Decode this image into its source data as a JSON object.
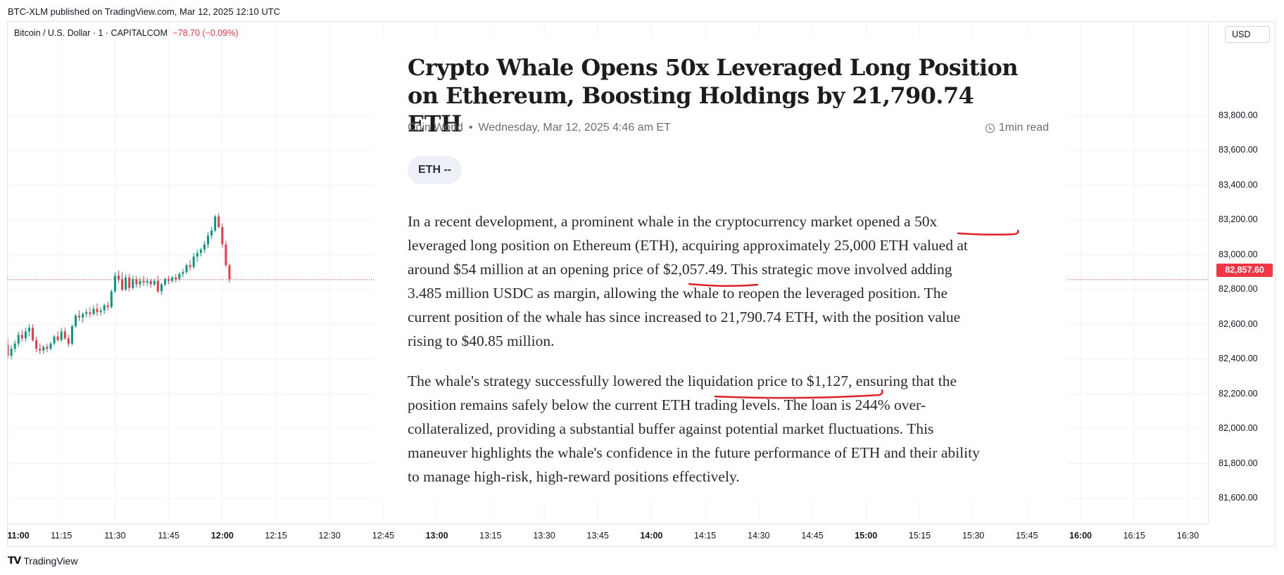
{
  "publish_line": "BTC-XLM published on TradingView.com, Mar 12, 2025 12:10 UTC",
  "legend": {
    "symbol": "Bitcoin / U.S. Dollar · 1 · CAPITALCOM",
    "change": "−78.70 (−0.09%)"
  },
  "currency": "USD",
  "last_price": "82,857.60",
  "colors": {
    "up": "#089981",
    "down": "#f23645",
    "grid": "#f0f3fa"
  },
  "price_scale": [
    "83,800.00",
    "83,600.00",
    "83,400.00",
    "83,200.00",
    "83,000.00",
    "82,800.00",
    "82,600.00",
    "82,400.00",
    "82,200.00",
    "82,000.00",
    "81,800.00",
    "81,600.00"
  ],
  "time_axis": [
    {
      "label": "11:00",
      "major": true
    },
    {
      "label": "11:15",
      "major": false
    },
    {
      "label": "11:30",
      "major": false
    },
    {
      "label": "11:45",
      "major": false
    },
    {
      "label": "12:00",
      "major": true
    },
    {
      "label": "12:15",
      "major": false
    },
    {
      "label": "12:30",
      "major": false
    },
    {
      "label": "12:45",
      "major": false
    },
    {
      "label": "13:00",
      "major": true
    },
    {
      "label": "13:15",
      "major": false
    },
    {
      "label": "13:30",
      "major": false
    },
    {
      "label": "13:45",
      "major": false
    },
    {
      "label": "14:00",
      "major": true
    },
    {
      "label": "14:15",
      "major": false
    },
    {
      "label": "14:30",
      "major": false
    },
    {
      "label": "14:45",
      "major": false
    },
    {
      "label": "15:00",
      "major": true
    },
    {
      "label": "15:15",
      "major": false
    },
    {
      "label": "15:30",
      "major": false
    },
    {
      "label": "15:45",
      "major": false
    },
    {
      "label": "16:00",
      "major": true
    },
    {
      "label": "16:15",
      "major": false
    },
    {
      "label": "16:30",
      "major": false
    }
  ],
  "brand": "TradingView",
  "article": {
    "title": "Crypto Whale Opens 50x Leveraged Long Position on Ethereum, Boosting Holdings by 21,790.74 ETH",
    "source": "Coin World",
    "date": "Wednesday, Mar 12, 2025 4:46 am ET",
    "read_time": "1min read",
    "ticker": "ETH --",
    "paragraph1": [
      "In a recent development, a prominent whale in the cryptocurrency market opened a 50x",
      "leveraged long position on Ethereum (ETH), acquiring approximately 25,000 ETH valued at",
      "around $54 million at an opening price of $2,057.49. This strategic move involved adding",
      "3.485 million USDC as margin, allowing the whale to reopen the leveraged position. The",
      "current position of the whale has since increased to 21,790.74 ETH, with the position value",
      "rising to $40.85 million."
    ],
    "paragraph2": [
      "The whale's strategy successfully lowered the liquidation price to $1,127, ensuring that the",
      "position remains safely below the current ETH trading levels. The loan is 244% over-",
      "collateralized, providing a substantial buffer against potential market fluctuations. This",
      "maneuver highlights the whale's confidence in the future performance of ETH and their ability",
      "to manage high-risk, high-reward positions effectively."
    ]
  },
  "candles": [
    {
      "t": "11:00",
      "o": 82480,
      "h": 82520,
      "l": 82400,
      "c": 82420
    },
    {
      "t": "11:01",
      "o": 82420,
      "h": 82480,
      "l": 82400,
      "c": 82460
    },
    {
      "t": "11:02",
      "o": 82460,
      "h": 82510,
      "l": 82440,
      "c": 82490
    },
    {
      "t": "11:03",
      "o": 82490,
      "h": 82560,
      "l": 82470,
      "c": 82540
    },
    {
      "t": "11:04",
      "o": 82540,
      "h": 82570,
      "l": 82500,
      "c": 82520
    },
    {
      "t": "11:05",
      "o": 82520,
      "h": 82580,
      "l": 82500,
      "c": 82560
    },
    {
      "t": "11:06",
      "o": 82560,
      "h": 82600,
      "l": 82530,
      "c": 82580
    },
    {
      "t": "11:07",
      "o": 82580,
      "h": 82600,
      "l": 82500,
      "c": 82510
    },
    {
      "t": "11:08",
      "o": 82510,
      "h": 82530,
      "l": 82440,
      "c": 82460
    },
    {
      "t": "11:09",
      "o": 82460,
      "h": 82490,
      "l": 82430,
      "c": 82450
    },
    {
      "t": "11:10",
      "o": 82450,
      "h": 82480,
      "l": 82430,
      "c": 82470
    },
    {
      "t": "11:11",
      "o": 82470,
      "h": 82490,
      "l": 82440,
      "c": 82460
    },
    {
      "t": "11:12",
      "o": 82460,
      "h": 82500,
      "l": 82450,
      "c": 82490
    },
    {
      "t": "11:13",
      "o": 82490,
      "h": 82540,
      "l": 82480,
      "c": 82530
    },
    {
      "t": "11:14",
      "o": 82530,
      "h": 82560,
      "l": 82500,
      "c": 82510
    },
    {
      "t": "11:15",
      "o": 82510,
      "h": 82580,
      "l": 82500,
      "c": 82560
    },
    {
      "t": "11:16",
      "o": 82560,
      "h": 82580,
      "l": 82510,
      "c": 82520
    },
    {
      "t": "11:17",
      "o": 82520,
      "h": 82540,
      "l": 82470,
      "c": 82490
    },
    {
      "t": "11:18",
      "o": 82490,
      "h": 82600,
      "l": 82480,
      "c": 82590
    },
    {
      "t": "11:19",
      "o": 82590,
      "h": 82660,
      "l": 82580,
      "c": 82650
    },
    {
      "t": "11:20",
      "o": 82650,
      "h": 82680,
      "l": 82620,
      "c": 82640
    },
    {
      "t": "11:21",
      "o": 82640,
      "h": 82670,
      "l": 82610,
      "c": 82660
    },
    {
      "t": "11:22",
      "o": 82660,
      "h": 82690,
      "l": 82640,
      "c": 82670
    },
    {
      "t": "11:23",
      "o": 82670,
      "h": 82700,
      "l": 82640,
      "c": 82660
    },
    {
      "t": "11:24",
      "o": 82660,
      "h": 82710,
      "l": 82650,
      "c": 82690
    },
    {
      "t": "11:25",
      "o": 82690,
      "h": 82720,
      "l": 82650,
      "c": 82670
    },
    {
      "t": "11:26",
      "o": 82670,
      "h": 82700,
      "l": 82650,
      "c": 82680
    },
    {
      "t": "11:27",
      "o": 82680,
      "h": 82720,
      "l": 82660,
      "c": 82710
    },
    {
      "t": "11:28",
      "o": 82710,
      "h": 82730,
      "l": 82680,
      "c": 82700
    },
    {
      "t": "11:29",
      "o": 82700,
      "h": 82800,
      "l": 82690,
      "c": 82790
    },
    {
      "t": "11:30",
      "o": 82790,
      "h": 82900,
      "l": 82780,
      "c": 82880
    },
    {
      "t": "11:31",
      "o": 82880,
      "h": 82910,
      "l": 82840,
      "c": 82860
    },
    {
      "t": "11:32",
      "o": 82860,
      "h": 82900,
      "l": 82790,
      "c": 82800
    },
    {
      "t": "11:33",
      "o": 82800,
      "h": 82890,
      "l": 82790,
      "c": 82870
    },
    {
      "t": "11:34",
      "o": 82870,
      "h": 82890,
      "l": 82790,
      "c": 82810
    },
    {
      "t": "11:35",
      "o": 82810,
      "h": 82880,
      "l": 82800,
      "c": 82860
    },
    {
      "t": "11:36",
      "o": 82860,
      "h": 82880,
      "l": 82810,
      "c": 82830
    },
    {
      "t": "11:37",
      "o": 82830,
      "h": 82870,
      "l": 82810,
      "c": 82850
    },
    {
      "t": "11:38",
      "o": 82850,
      "h": 82880,
      "l": 82820,
      "c": 82840
    },
    {
      "t": "11:39",
      "o": 82840,
      "h": 82870,
      "l": 82820,
      "c": 82850
    },
    {
      "t": "11:40",
      "o": 82850,
      "h": 82860,
      "l": 82810,
      "c": 82830
    },
    {
      "t": "11:41",
      "o": 82830,
      "h": 82860,
      "l": 82820,
      "c": 82850
    },
    {
      "t": "11:42",
      "o": 82850,
      "h": 82880,
      "l": 82780,
      "c": 82790
    },
    {
      "t": "11:43",
      "o": 82790,
      "h": 82840,
      "l": 82770,
      "c": 82830
    },
    {
      "t": "11:44",
      "o": 82830,
      "h": 82870,
      "l": 82820,
      "c": 82860
    },
    {
      "t": "11:45",
      "o": 82860,
      "h": 82880,
      "l": 82830,
      "c": 82850
    },
    {
      "t": "11:46",
      "o": 82850,
      "h": 82880,
      "l": 82840,
      "c": 82870
    },
    {
      "t": "11:47",
      "o": 82870,
      "h": 82890,
      "l": 82840,
      "c": 82860
    },
    {
      "t": "11:48",
      "o": 82860,
      "h": 82900,
      "l": 82850,
      "c": 82890
    },
    {
      "t": "11:49",
      "o": 82890,
      "h": 82920,
      "l": 82870,
      "c": 82900
    },
    {
      "t": "11:50",
      "o": 82900,
      "h": 82950,
      "l": 82890,
      "c": 82940
    },
    {
      "t": "11:51",
      "o": 82940,
      "h": 82970,
      "l": 82910,
      "c": 82930
    },
    {
      "t": "11:52",
      "o": 82930,
      "h": 83010,
      "l": 82920,
      "c": 82990
    },
    {
      "t": "11:53",
      "o": 82990,
      "h": 83030,
      "l": 82960,
      "c": 83010
    },
    {
      "t": "11:54",
      "o": 83010,
      "h": 83040,
      "l": 82990,
      "c": 83030
    },
    {
      "t": "11:55",
      "o": 83030,
      "h": 83080,
      "l": 83010,
      "c": 83060
    },
    {
      "t": "11:56",
      "o": 83060,
      "h": 83130,
      "l": 83040,
      "c": 83110
    },
    {
      "t": "11:57",
      "o": 83110,
      "h": 83160,
      "l": 83090,
      "c": 83140
    },
    {
      "t": "11:58",
      "o": 83140,
      "h": 83230,
      "l": 83130,
      "c": 83220
    },
    {
      "t": "11:59",
      "o": 83220,
      "h": 83240,
      "l": 83150,
      "c": 83160
    },
    {
      "t": "12:00",
      "o": 83160,
      "h": 83180,
      "l": 83040,
      "c": 83060
    },
    {
      "t": "12:01",
      "o": 83060,
      "h": 83080,
      "l": 82930,
      "c": 82940
    },
    {
      "t": "12:02",
      "o": 82940,
      "h": 82950,
      "l": 82840,
      "c": 82860
    }
  ]
}
